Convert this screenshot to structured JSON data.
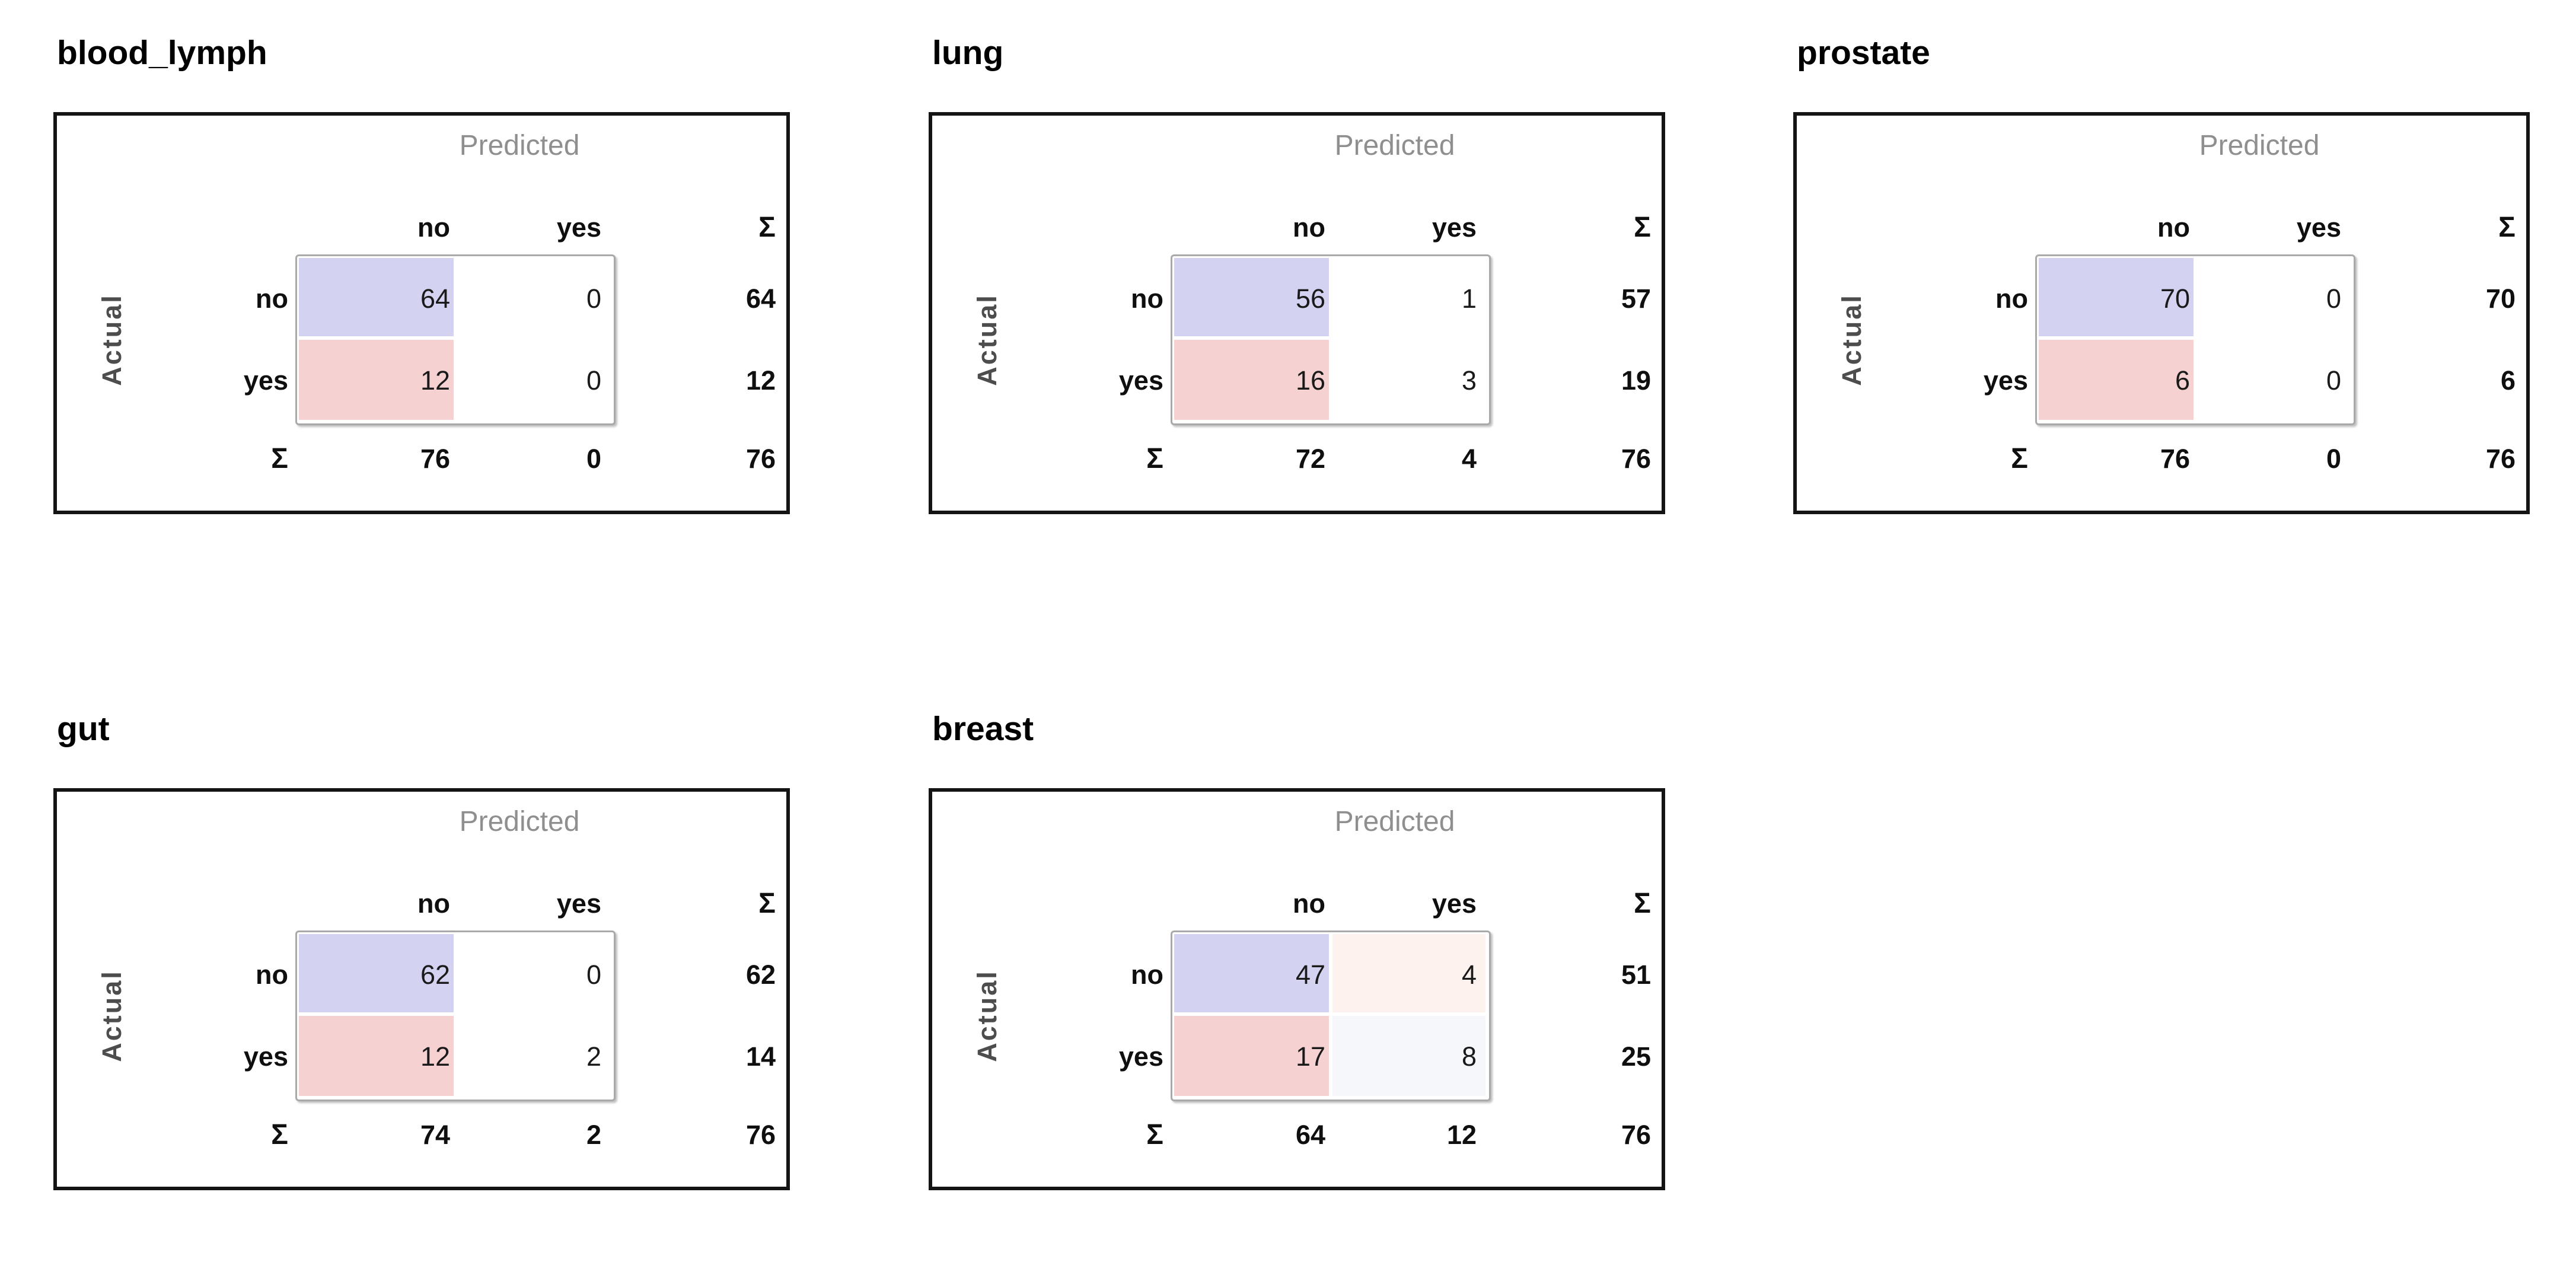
{
  "labels": {
    "predicted": "Predicted",
    "actual": "Actual",
    "col_no": "no",
    "col_yes": "yes",
    "row_no": "no",
    "row_yes": "yes",
    "sum": "Σ"
  },
  "colors": {
    "actual_no_row_fill": "#d3d3f1",
    "actual_yes_row_fill": "#f5d1d2",
    "breast_no_yes_fill": "#fdf2ed",
    "breast_yes_yes_fill": "#f5f7fb",
    "axis_label_gray": "#8f8f8f",
    "panel_border": "#141414"
  },
  "chart_data": [
    {
      "type": "table",
      "title": "blood_lymph",
      "x_axis_label": "Predicted",
      "y_axis_label": "Actual",
      "col_headers": [
        "no",
        "yes",
        "Σ"
      ],
      "row_headers": [
        "no",
        "yes",
        "Σ"
      ],
      "cells": [
        [
          64,
          0
        ],
        [
          12,
          0
        ]
      ],
      "row_totals": [
        64,
        12
      ],
      "col_totals": [
        76,
        0
      ],
      "grand_total": 76,
      "cell_fills": [
        [
          "#d3d3f1",
          "#ffffff"
        ],
        [
          "#f5d1d2",
          "#ffffff"
        ]
      ]
    },
    {
      "type": "table",
      "title": "lung",
      "x_axis_label": "Predicted",
      "y_axis_label": "Actual",
      "col_headers": [
        "no",
        "yes",
        "Σ"
      ],
      "row_headers": [
        "no",
        "yes",
        "Σ"
      ],
      "cells": [
        [
          56,
          1
        ],
        [
          16,
          3
        ]
      ],
      "row_totals": [
        57,
        19
      ],
      "col_totals": [
        72,
        4
      ],
      "grand_total": 76,
      "cell_fills": [
        [
          "#d3d3f1",
          "#ffffff"
        ],
        [
          "#f5d1d2",
          "#ffffff"
        ]
      ]
    },
    {
      "type": "table",
      "title": "prostate",
      "x_axis_label": "Predicted",
      "y_axis_label": "Actual",
      "col_headers": [
        "no",
        "yes",
        "Σ"
      ],
      "row_headers": [
        "no",
        "yes",
        "Σ"
      ],
      "cells": [
        [
          70,
          0
        ],
        [
          6,
          0
        ]
      ],
      "row_totals": [
        70,
        6
      ],
      "col_totals": [
        76,
        0
      ],
      "grand_total": 76,
      "cell_fills": [
        [
          "#d3d3f1",
          "#ffffff"
        ],
        [
          "#f5d1d2",
          "#ffffff"
        ]
      ]
    },
    {
      "type": "table",
      "title": "gut",
      "x_axis_label": "Predicted",
      "y_axis_label": "Actual",
      "col_headers": [
        "no",
        "yes",
        "Σ"
      ],
      "row_headers": [
        "no",
        "yes",
        "Σ"
      ],
      "cells": [
        [
          62,
          0
        ],
        [
          12,
          2
        ]
      ],
      "row_totals": [
        62,
        14
      ],
      "col_totals": [
        74,
        2
      ],
      "grand_total": 76,
      "cell_fills": [
        [
          "#d3d3f1",
          "#ffffff"
        ],
        [
          "#f5d1d2",
          "#ffffff"
        ]
      ]
    },
    {
      "type": "table",
      "title": "breast",
      "x_axis_label": "Predicted",
      "y_axis_label": "Actual",
      "col_headers": [
        "no",
        "yes",
        "Σ"
      ],
      "row_headers": [
        "no",
        "yes",
        "Σ"
      ],
      "cells": [
        [
          47,
          4
        ],
        [
          17,
          8
        ]
      ],
      "row_totals": [
        51,
        25
      ],
      "col_totals": [
        64,
        12
      ],
      "grand_total": 76,
      "cell_fills": [
        [
          "#d3d3f1",
          "#fdf2ed"
        ],
        [
          "#f5d1d2",
          "#f5f7fb"
        ]
      ]
    }
  ]
}
